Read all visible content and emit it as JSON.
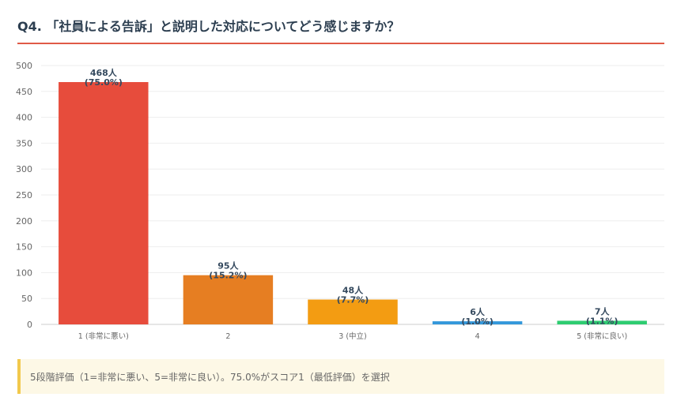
{
  "title": "Q4. 「社員による告訴」と説明した対応についてどう感じますか？",
  "colors": {
    "title_rule": "#e05a47",
    "note_border": "#f2c94c",
    "note_bg": "#fdf8e6"
  },
  "chart_data": {
    "type": "bar",
    "categories": [
      "1 (非常に悪い)",
      "2",
      "3 (中立)",
      "4",
      "5 (非常に良い)"
    ],
    "values": [
      468,
      95,
      48,
      6,
      7
    ],
    "value_labels": [
      "468人",
      "95人",
      "48人",
      "6人",
      "7人"
    ],
    "percent_labels": [
      "(75.0%)",
      "(15.2%)",
      "(7.7%)",
      "(1.0%)",
      "(1.1%)"
    ],
    "colors": [
      "#e74c3c",
      "#e67e22",
      "#f39c12",
      "#3498db",
      "#2ecc71"
    ],
    "yticks": [
      0,
      50,
      100,
      150,
      200,
      250,
      300,
      350,
      400,
      450,
      500
    ],
    "ylim": [
      0,
      500
    ],
    "grid": true
  },
  "note": {
    "text": "5段階評価（1=非常に悪い、5=非常に良い）。75.0%がスコア1（最低評価）を選択"
  }
}
